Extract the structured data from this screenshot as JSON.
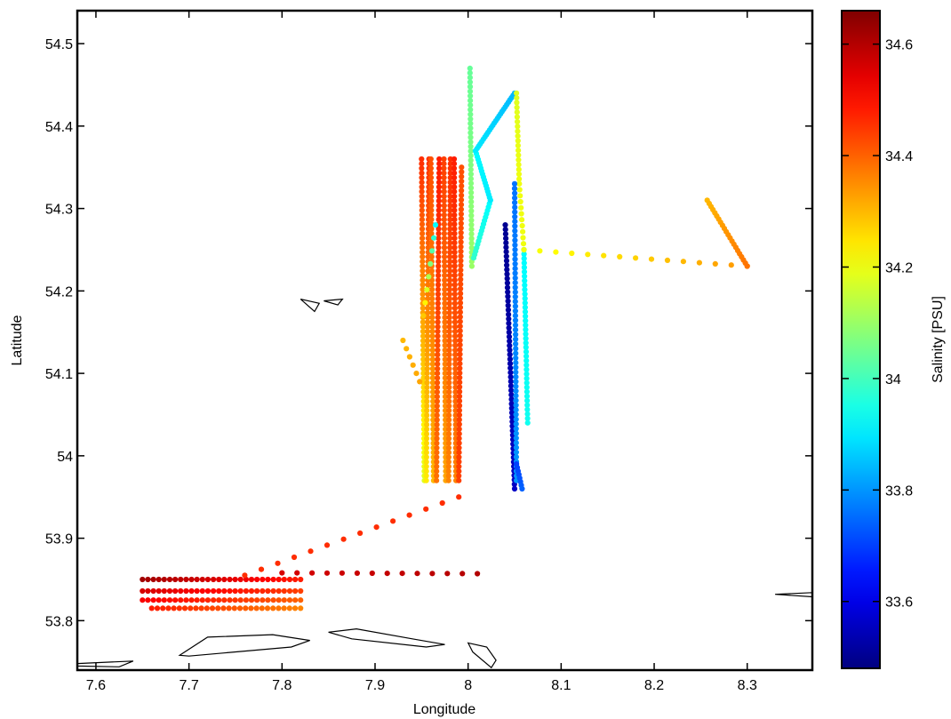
{
  "chart_data": {
    "type": "scatter",
    "title": "",
    "xlabel": "Longitude",
    "ylabel": "Latitude",
    "xlim": [
      7.58,
      8.37
    ],
    "ylim": [
      53.74,
      54.54
    ],
    "xticks": [
      "7.6",
      "7.7",
      "7.8",
      "7.9",
      "8",
      "8.1",
      "8.2",
      "8.3"
    ],
    "yticks": [
      "53.8",
      "53.9",
      "54",
      "54.1",
      "54.2",
      "54.3",
      "54.4",
      "54.5"
    ],
    "grid": false,
    "colorbar": {
      "label": "Salinity [PSU]",
      "range": [
        33.48,
        34.66
      ],
      "ticks": [
        "33.6",
        "33.8",
        "34",
        "34.2",
        "34.4",
        "34.6"
      ],
      "colormap": "jet"
    },
    "transects": [
      {
        "lon": [
          7.65,
          7.82
        ],
        "lat": [
          53.85,
          53.85
        ],
        "sal": [
          34.62,
          34.48
        ],
        "n": 30
      },
      {
        "lon": [
          7.65,
          7.82
        ],
        "lat": [
          53.836,
          53.836
        ],
        "sal": [
          34.56,
          34.44
        ],
        "n": 30
      },
      {
        "lon": [
          7.65,
          7.82
        ],
        "lat": [
          53.825,
          53.825
        ],
        "sal": [
          34.52,
          34.4
        ],
        "n": 30
      },
      {
        "lon": [
          7.66,
          7.82
        ],
        "lat": [
          53.815,
          53.815
        ],
        "sal": [
          34.48,
          34.36
        ],
        "n": 28
      },
      {
        "lon": [
          7.76,
          7.99
        ],
        "lat": [
          53.855,
          53.95
        ],
        "sal": [
          34.46,
          34.46
        ],
        "n": 14
      },
      {
        "lon": [
          7.8,
          8.01
        ],
        "lat": [
          53.858,
          53.857
        ],
        "sal": [
          34.56,
          34.6
        ],
        "n": 14
      },
      {
        "lon": [
          7.95,
          7.953
        ],
        "lat": [
          54.36,
          53.97
        ],
        "sal": [
          34.46,
          34.18
        ],
        "n": 70
      },
      {
        "lon": [
          7.955,
          7.958
        ],
        "lat": [
          53.97,
          54.36
        ],
        "sal": [
          34.24,
          34.46
        ],
        "n": 70
      },
      {
        "lon": [
          7.96,
          7.963
        ],
        "lat": [
          54.36,
          53.97
        ],
        "sal": [
          34.42,
          34.3
        ],
        "n": 70
      },
      {
        "lon": [
          7.966,
          7.969
        ],
        "lat": [
          53.97,
          54.36
        ],
        "sal": [
          34.38,
          34.48
        ],
        "n": 70
      },
      {
        "lon": [
          7.974,
          7.976
        ],
        "lat": [
          54.36,
          53.97
        ],
        "sal": [
          34.44,
          34.32
        ],
        "n": 70
      },
      {
        "lon": [
          7.979,
          7.981
        ],
        "lat": [
          53.97,
          54.36
        ],
        "sal": [
          34.36,
          34.46
        ],
        "n": 70
      },
      {
        "lon": [
          7.985,
          7.987
        ],
        "lat": [
          54.36,
          53.97
        ],
        "sal": [
          34.48,
          34.36
        ],
        "n": 70
      },
      {
        "lon": [
          7.99,
          7.993
        ],
        "lat": [
          53.97,
          54.35
        ],
        "sal": [
          34.44,
          34.42
        ],
        "n": 68
      },
      {
        "lon": [
          7.93,
          7.948
        ],
        "lat": [
          54.14,
          54.09
        ],
        "sal": [
          34.3,
          34.32
        ],
        "n": 6
      },
      {
        "lon": [
          7.952,
          7.965
        ],
        "lat": [
          54.17,
          54.28
        ],
        "sal": [
          34.28,
          33.92
        ],
        "n": 8
      },
      {
        "lon": [
          8.002,
          8.004
        ],
        "lat": [
          54.47,
          54.23
        ],
        "sal": [
          34.04,
          34.1
        ],
        "n": 44
      },
      {
        "lon": [
          8.006,
          8.024
        ],
        "lat": [
          54.24,
          54.31
        ],
        "sal": [
          33.98,
          33.92
        ],
        "n": 18
      },
      {
        "lon": [
          8.024,
          8.008
        ],
        "lat": [
          54.31,
          54.37
        ],
        "sal": [
          33.9,
          33.92
        ],
        "n": 18
      },
      {
        "lon": [
          8.008,
          8.05
        ],
        "lat": [
          54.37,
          54.44
        ],
        "sal": [
          33.9,
          33.84
        ],
        "n": 26
      },
      {
        "lon": [
          8.052,
          8.055
        ],
        "lat": [
          54.44,
          54.33
        ],
        "sal": [
          34.18,
          34.2
        ],
        "n": 20
      },
      {
        "lon": [
          8.055,
          8.06
        ],
        "lat": [
          54.33,
          54.25
        ],
        "sal": [
          34.2,
          34.2
        ],
        "n": 12
      },
      {
        "lon": [
          8.06,
          8.064
        ],
        "lat": [
          54.25,
          54.04
        ],
        "sal": [
          33.92,
          33.94
        ],
        "n": 40
      },
      {
        "lon": [
          8.04,
          8.05
        ],
        "lat": [
          54.28,
          53.96
        ],
        "sal": [
          33.5,
          33.56
        ],
        "n": 60
      },
      {
        "lon": [
          8.05,
          8.052
        ],
        "lat": [
          54.33,
          53.97
        ],
        "sal": [
          33.76,
          33.8
        ],
        "n": 64
      },
      {
        "lon": [
          8.052,
          8.058
        ],
        "lat": [
          53.99,
          53.96
        ],
        "sal": [
          33.7,
          33.74
        ],
        "n": 8
      },
      {
        "lon": [
          8.06,
          8.3
        ],
        "lat": [
          54.25,
          54.23
        ],
        "sal": [
          34.2,
          34.34
        ],
        "n": 15
      },
      {
        "lon": [
          8.257,
          8.3
        ],
        "lat": [
          54.31,
          54.23
        ],
        "sal": [
          34.3,
          34.38
        ],
        "n": 22
      }
    ],
    "coastlines": [
      {
        "lon": [
          7.58,
          7.64,
          7.625,
          7.58
        ],
        "lat": [
          53.748,
          53.751,
          53.744,
          53.745
        ]
      },
      {
        "lon": [
          7.69,
          7.72,
          7.79,
          7.83,
          7.81,
          7.7,
          7.69
        ],
        "lat": [
          53.758,
          53.78,
          53.783,
          53.776,
          53.768,
          53.757,
          53.758
        ]
      },
      {
        "lon": [
          7.85,
          7.88,
          7.94,
          7.975,
          7.955,
          7.875,
          7.85
        ],
        "lat": [
          53.786,
          53.79,
          53.778,
          53.771,
          53.768,
          53.778,
          53.786
        ]
      },
      {
        "lon": [
          8.0,
          8.02,
          8.03,
          8.025,
          8.005,
          8.0
        ],
        "lat": [
          53.773,
          53.768,
          53.752,
          53.743,
          53.762,
          53.773
        ]
      },
      {
        "lon": [
          7.82,
          7.84,
          7.835,
          7.82
        ],
        "lat": [
          54.19,
          54.185,
          54.175,
          54.19
        ]
      },
      {
        "lon": [
          7.845,
          7.865,
          7.86,
          7.845
        ],
        "lat": [
          54.188,
          54.19,
          54.183,
          54.188
        ]
      },
      {
        "lon": [
          8.33,
          8.37,
          8.37,
          8.33
        ],
        "lat": [
          53.832,
          53.834,
          53.829,
          53.832
        ]
      }
    ]
  }
}
